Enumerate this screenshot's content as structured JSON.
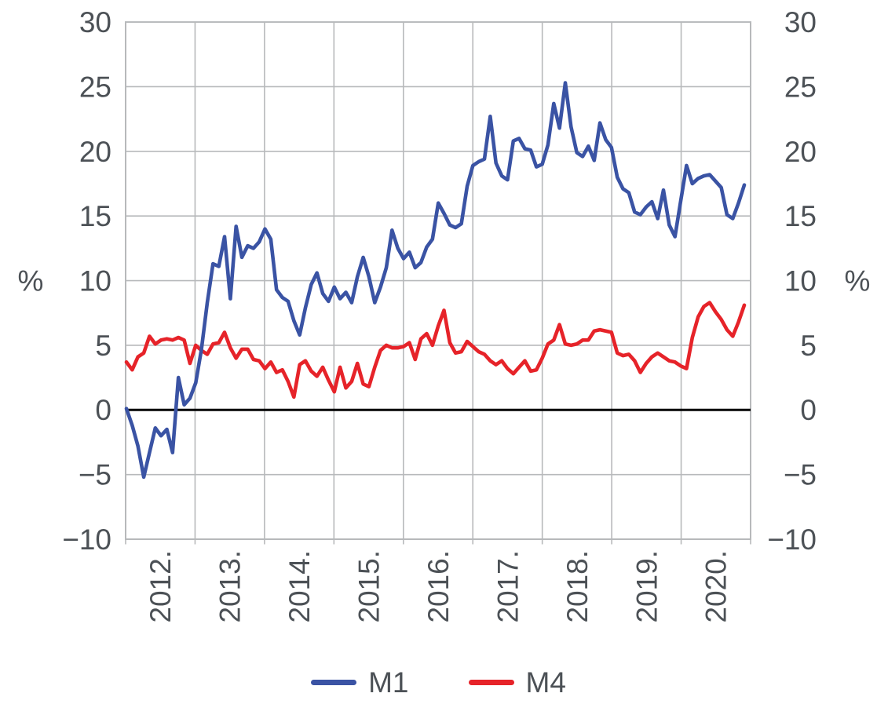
{
  "chart_data": {
    "type": "line",
    "title": "",
    "x_unit": "year (monthly data)",
    "x_tick_labels": [
      "2012.",
      "2013.",
      "2014.",
      "2015.",
      "2016.",
      "2017.",
      "2018.",
      "2019.",
      "2020."
    ],
    "y_axis": {
      "unit_left": "%",
      "unit_right": "%",
      "ylim": [
        -10,
        30
      ],
      "yticks": [
        30,
        25,
        20,
        15,
        10,
        5,
        0,
        -5,
        -10
      ],
      "ytick_labels": [
        "30",
        "25",
        "20",
        "15",
        "10",
        "5",
        "0",
        "−5",
        "−10"
      ],
      "grid": true,
      "zero_line": true
    },
    "legend_position": "bottom-center",
    "colors": {
      "m1": "#3a53a4",
      "m4": "#e62329",
      "grid": "#b7b9bb",
      "zero_line": "#000000",
      "text": "#4c5156"
    },
    "series": [
      {
        "name": "M1",
        "color": "#3a53a4",
        "values": [
          0.1,
          -1.2,
          -2.8,
          -5.2,
          -3.3,
          -1.4,
          -2,
          -1.5,
          -3.3,
          2.5,
          0.4,
          0.9,
          2.1,
          4.7,
          8.3,
          11.3,
          11.1,
          13.4,
          8.6,
          14.2,
          11.8,
          12.7,
          12.5,
          13,
          14,
          13.2,
          9.3,
          8.7,
          8.4,
          6.9,
          5.8,
          7.9,
          9.7,
          10.6,
          9,
          8.4,
          9.5,
          8.6,
          9.1,
          8.3,
          10.3,
          11.8,
          10.3,
          8.3,
          9.5,
          11,
          13.9,
          12.5,
          11.7,
          12.2,
          11,
          11.4,
          12.6,
          13.2,
          16,
          15.2,
          14.3,
          14.1,
          14.4,
          17.3,
          18.9,
          19.2,
          19.4,
          22.7,
          19.1,
          18.1,
          17.8,
          20.8,
          21,
          20.2,
          20.1,
          18.8,
          19,
          20.5,
          23.7,
          21.8,
          25.3,
          21.9,
          19.9,
          19.6,
          20.4,
          19.3,
          22.2,
          20.9,
          20.3,
          18,
          17.1,
          16.8,
          15.3,
          15.1,
          15.7,
          16.1,
          14.8,
          17,
          14.3,
          13.4,
          16.2,
          18.9,
          17.5,
          17.9,
          18.1,
          18.2,
          17.7,
          17.2,
          15.1,
          14.8,
          16,
          17.4
        ]
      },
      {
        "name": "M4",
        "color": "#e62329",
        "values": [
          3.7,
          3.1,
          4.1,
          4.4,
          5.7,
          5.1,
          5.4,
          5.5,
          5.4,
          5.6,
          5.4,
          3.6,
          5,
          4.6,
          4.3,
          5.1,
          5.2,
          6,
          4.8,
          4,
          4.7,
          4.7,
          3.9,
          3.8,
          3.2,
          3.7,
          2.9,
          3.1,
          2.2,
          1,
          3.5,
          3.8,
          3,
          2.6,
          3.3,
          2.3,
          1.4,
          3.3,
          1.7,
          2.2,
          3.6,
          2,
          1.8,
          3.3,
          4.6,
          5,
          4.8,
          4.8,
          4.9,
          5.2,
          3.9,
          5.5,
          5.9,
          5,
          6.5,
          7.7,
          5.2,
          4.4,
          4.5,
          5.3,
          4.9,
          4.5,
          4.3,
          3.8,
          3.5,
          3.8,
          3.2,
          2.8,
          3.3,
          3.8,
          3,
          3.1,
          4,
          5.1,
          5.4,
          6.6,
          5.1,
          5,
          5.1,
          5.4,
          5.4,
          6.1,
          6.2,
          6.1,
          6,
          4.4,
          4.2,
          4.3,
          3.8,
          2.9,
          3.6,
          4.1,
          4.4,
          4.1,
          3.8,
          3.7,
          3.4,
          3.2,
          5.6,
          7.2,
          8,
          8.3,
          7.6,
          7,
          6.2,
          5.7,
          6.8,
          8.1
        ]
      }
    ]
  }
}
